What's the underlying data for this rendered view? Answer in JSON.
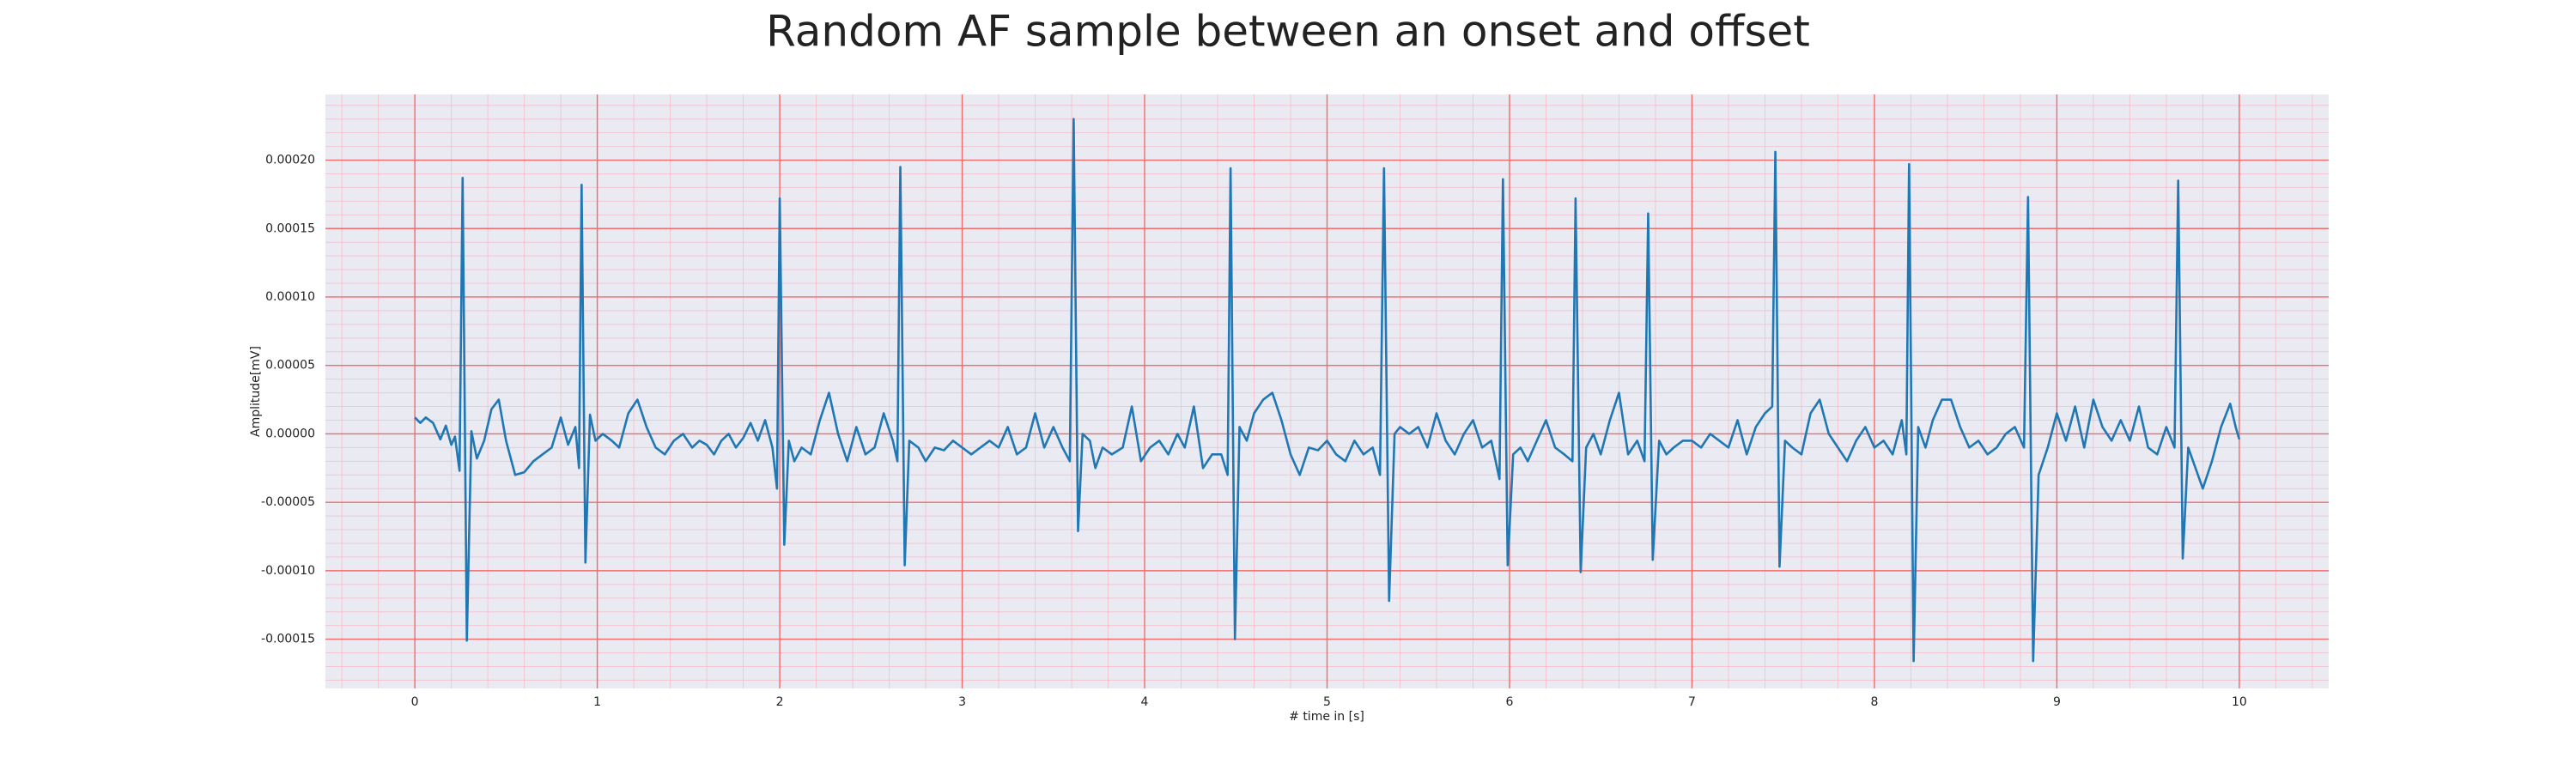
{
  "chart_data": {
    "type": "line",
    "title": "Random AF sample between an onset and offset",
    "xlabel": "# time in [s]",
    "ylabel": "Amplitude[mV]",
    "color": "#1f77b4",
    "grid": true,
    "xlim": [
      -0.49,
      10.49
    ],
    "ylim": [
      -0.000186,
      0.000248
    ],
    "xticks": [
      0,
      1,
      2,
      3,
      4,
      5,
      6,
      7,
      8,
      9,
      10
    ],
    "yticks": [
      {
        "value": -0.00015,
        "label": "-0.00015"
      },
      {
        "value": -0.0001,
        "label": "-0.00010"
      },
      {
        "value": -5e-05,
        "label": "-0.00005"
      },
      {
        "value": 0,
        "label": "0.00000"
      },
      {
        "value": 5e-05,
        "label": "0.00005"
      },
      {
        "value": 0.0001,
        "label": "0.00010"
      },
      {
        "value": 0.00015,
        "label": "0.00015"
      },
      {
        "value": 0.0002,
        "label": "0.00020"
      }
    ],
    "x": [
      0,
      0.03,
      0.06,
      0.1,
      0.14,
      0.17,
      0.2,
      0.22,
      0.245,
      0.262,
      0.285,
      0.31,
      0.34,
      0.38,
      0.42,
      0.46,
      0.5,
      0.55,
      0.6,
      0.65,
      0.7,
      0.75,
      0.8,
      0.84,
      0.88,
      0.9,
      0.914,
      0.935,
      0.96,
      0.99,
      1.03,
      1.08,
      1.12,
      1.17,
      1.22,
      1.27,
      1.32,
      1.37,
      1.42,
      1.47,
      1.52,
      1.56,
      1.6,
      1.64,
      1.68,
      1.72,
      1.76,
      1.8,
      1.84,
      1.88,
      1.92,
      1.96,
      1.985,
      2.0,
      2.025,
      2.05,
      2.08,
      2.12,
      2.17,
      2.22,
      2.27,
      2.32,
      2.37,
      2.42,
      2.47,
      2.52,
      2.57,
      2.62,
      2.645,
      2.661,
      2.685,
      2.71,
      2.76,
      2.8,
      2.85,
      2.9,
      2.95,
      3.0,
      3.05,
      3.1,
      3.15,
      3.2,
      3.25,
      3.3,
      3.35,
      3.4,
      3.45,
      3.5,
      3.55,
      3.59,
      3.611,
      3.635,
      3.66,
      3.7,
      3.73,
      3.77,
      3.82,
      3.88,
      3.93,
      3.98,
      4.03,
      4.08,
      4.13,
      4.18,
      4.22,
      4.27,
      4.32,
      4.37,
      4.42,
      4.455,
      4.471,
      4.495,
      4.52,
      4.56,
      4.6,
      4.65,
      4.7,
      4.75,
      4.8,
      4.85,
      4.9,
      4.95,
      5.0,
      5.05,
      5.1,
      5.15,
      5.2,
      5.25,
      5.29,
      5.312,
      5.34,
      5.37,
      5.4,
      5.45,
      5.5,
      5.55,
      5.6,
      5.65,
      5.7,
      5.75,
      5.8,
      5.85,
      5.9,
      5.945,
      5.964,
      5.99,
      6.02,
      6.06,
      6.1,
      6.15,
      6.2,
      6.25,
      6.3,
      6.345,
      6.362,
      6.39,
      6.42,
      6.46,
      6.5,
      6.55,
      6.6,
      6.65,
      6.7,
      6.74,
      6.76,
      6.785,
      6.82,
      6.86,
      6.9,
      6.95,
      7.0,
      7.05,
      7.1,
      7.15,
      7.2,
      7.25,
      7.3,
      7.35,
      7.4,
      7.44,
      7.457,
      7.48,
      7.51,
      7.55,
      7.6,
      7.65,
      7.7,
      7.75,
      7.8,
      7.85,
      7.9,
      7.95,
      8.0,
      8.05,
      8.1,
      8.15,
      8.175,
      8.19,
      8.215,
      8.24,
      8.28,
      8.32,
      8.37,
      8.42,
      8.47,
      8.52,
      8.57,
      8.62,
      8.67,
      8.72,
      8.77,
      8.82,
      8.842,
      8.87,
      8.9,
      8.95,
      9.0,
      9.05,
      9.1,
      9.15,
      9.2,
      9.25,
      9.3,
      9.35,
      9.4,
      9.45,
      9.5,
      9.55,
      9.6,
      9.645,
      9.665,
      9.69,
      9.72,
      9.76,
      9.8,
      9.85,
      9.9,
      9.95,
      9.98,
      10.0
    ],
    "values": [
      1.2e-05,
      8e-06,
      1.2e-05,
      8e-06,
      -4e-06,
      6e-06,
      -8e-06,
      -2e-06,
      -2.7e-05,
      0.000187,
      -0.000151,
      2e-06,
      -1.8e-05,
      -5e-06,
      1.8e-05,
      2.5e-05,
      -5e-06,
      -3e-05,
      -2.8e-05,
      -2e-05,
      -1.5e-05,
      -1e-05,
      1.2e-05,
      -8e-06,
      5e-06,
      -2.5e-05,
      0.000182,
      -9.4e-05,
      1.4e-05,
      -5e-06,
      0,
      -5e-06,
      -1e-05,
      1.5e-05,
      2.5e-05,
      5e-06,
      -1e-05,
      -1.5e-05,
      -5e-06,
      0,
      -1e-05,
      -5e-06,
      -8e-06,
      -1.5e-05,
      -5e-06,
      0,
      -1e-05,
      -3e-06,
      8e-06,
      -5e-06,
      1e-05,
      -1e-05,
      -4e-05,
      0.000172,
      -8.1e-05,
      -5e-06,
      -2e-05,
      -1e-05,
      -1.5e-05,
      1e-05,
      3e-05,
      0,
      -2e-05,
      5e-06,
      -1.5e-05,
      -1e-05,
      1.5e-05,
      -5e-06,
      -2e-05,
      0.000195,
      -9.6e-05,
      -5e-06,
      -1e-05,
      -2e-05,
      -1e-05,
      -1.2e-05,
      -5e-06,
      -1e-05,
      -1.5e-05,
      -1e-05,
      -5e-06,
      -1e-05,
      5e-06,
      -1.5e-05,
      -1e-05,
      1.5e-05,
      -1e-05,
      5e-06,
      -1e-05,
      -2e-05,
      0.00023,
      -7.1e-05,
      0,
      -5e-06,
      -2.5e-05,
      -1e-05,
      -1.5e-05,
      -1e-05,
      2e-05,
      -2e-05,
      -1e-05,
      -5e-06,
      -1.5e-05,
      0,
      -1e-05,
      2e-05,
      -2.5e-05,
      -1.5e-05,
      -1.5e-05,
      -3e-05,
      0.000194,
      -0.00015,
      5e-06,
      -5e-06,
      1.5e-05,
      2.5e-05,
      3e-05,
      1e-05,
      -1.5e-05,
      -3e-05,
      -1e-05,
      -1.2e-05,
      -5e-06,
      -1.5e-05,
      -2e-05,
      -5e-06,
      -1.5e-05,
      -1e-05,
      -3e-05,
      0.000194,
      -0.000122,
      0,
      5e-06,
      0,
      5e-06,
      -1e-05,
      1.5e-05,
      -5e-06,
      -1.5e-05,
      0,
      1e-05,
      -1e-05,
      -5e-06,
      -3.3e-05,
      0.000186,
      -9.6e-05,
      -1.5e-05,
      -1e-05,
      -2e-05,
      -5e-06,
      1e-05,
      -1e-05,
      -1.5e-05,
      -2e-05,
      0.000172,
      -0.000101,
      -1e-05,
      0,
      -1.5e-05,
      1e-05,
      3e-05,
      -1.5e-05,
      -5e-06,
      -2e-05,
      0.000161,
      -9.2e-05,
      -5e-06,
      -1.5e-05,
      -1e-05,
      -5e-06,
      -5e-06,
      -1e-05,
      0,
      -5e-06,
      -1e-05,
      1e-05,
      -1.5e-05,
      5e-06,
      1.5e-05,
      2e-05,
      0.000206,
      -9.7e-05,
      -5e-06,
      -1e-05,
      -1.5e-05,
      1.5e-05,
      2.5e-05,
      0,
      -1e-05,
      -2e-05,
      -5e-06,
      5e-06,
      -1e-05,
      -5e-06,
      -1.5e-05,
      1e-05,
      -1.5e-05,
      0.000197,
      -0.000166,
      5e-06,
      -1e-05,
      1e-05,
      2.5e-05,
      2.5e-05,
      5e-06,
      -1e-05,
      -5e-06,
      -1.5e-05,
      -1e-05,
      0,
      5e-06,
      -1e-05,
      0.000173,
      -0.000166,
      -3e-05,
      -1e-05,
      1.5e-05,
      -5e-06,
      2e-05,
      -1e-05,
      2.5e-05,
      5e-06,
      -5e-06,
      1e-05,
      -5e-06,
      2e-05,
      -1e-05,
      -1.5e-05,
      5e-06,
      -1e-05,
      0.000185,
      -9.1e-05,
      -1e-05,
      -2.5e-05,
      -4e-05,
      -2e-05,
      5e-06,
      2.2e-05,
      5e-06,
      -4e-06
    ]
  }
}
